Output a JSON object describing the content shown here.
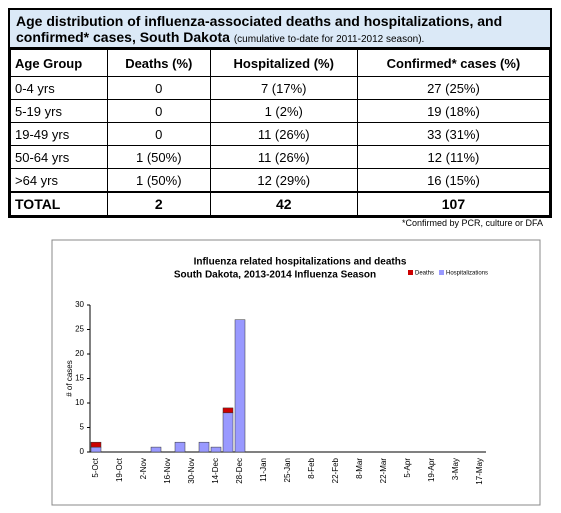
{
  "table": {
    "title": "Age distribution of influenza-associated deaths and hospitalizations, and confirmed* cases, South Dakota",
    "title_note": "(cumulative to-date for 2011-2012 season).",
    "header": [
      "Age Group",
      "Deaths (%)",
      "Hospitalized (%)",
      "Confirmed* cases (%)"
    ],
    "rows": [
      [
        "0-4 yrs",
        "0",
        "7 (17%)",
        "27 (25%)"
      ],
      [
        "5-19 yrs",
        "0",
        "1 (2%)",
        "19 (18%)"
      ],
      [
        "19-49 yrs",
        "0",
        "11 (26%)",
        "33 (31%)"
      ],
      [
        "50-64 yrs",
        "1 (50%)",
        "11 (26%)",
        "12 (11%)"
      ],
      [
        ">64 yrs",
        "1 (50%)",
        "12 (29%)",
        "16 (15%)"
      ],
      [
        "TOTAL",
        "2",
        "42",
        "107"
      ]
    ],
    "footnote": "*Confirmed by PCR, culture or DFA"
  },
  "chart_data": {
    "type": "stacked_bar",
    "title": "Influenza related hospitalizations and deaths",
    "subtitle": "South Dakota, 2013-2014 Influenza Season",
    "y_label": "# of cases",
    "categories": [
      "5-Oct",
      null,
      "19-Oct",
      null,
      "2-Nov",
      null,
      "16-Nov",
      null,
      "30-Nov",
      null,
      "14-Dec",
      null,
      "28-Dec",
      null,
      "11-Jan",
      null,
      "25-Jan",
      null,
      "8-Feb",
      null,
      "22-Feb",
      null,
      "8-Mar",
      null,
      "22-Mar",
      null,
      "5-Apr",
      null,
      "19-Apr",
      null,
      "3-May",
      null,
      "17-May"
    ],
    "series": [
      {
        "name": "Hospitalizations",
        "color": "#9999ff",
        "values": [
          1,
          0,
          0,
          0,
          0,
          1,
          0,
          2,
          0,
          2,
          1,
          8,
          27,
          null,
          null,
          null,
          null,
          null,
          null,
          null,
          null,
          null,
          null,
          null,
          null,
          null,
          null,
          null,
          null,
          null,
          null,
          null,
          null
        ]
      },
      {
        "name": "Deaths",
        "color": "#cc0000",
        "values": [
          1,
          0,
          0,
          0,
          0,
          0,
          0,
          0,
          0,
          0,
          0,
          1,
          0,
          null,
          null,
          null,
          null,
          null,
          null,
          null,
          null,
          null,
          null,
          null,
          null,
          null,
          null,
          null,
          null,
          null,
          null,
          null,
          null
        ]
      }
    ],
    "ylim": [
      0,
      30
    ],
    "yticks": [
      0,
      5,
      10,
      15,
      20,
      25,
      30
    ]
  }
}
